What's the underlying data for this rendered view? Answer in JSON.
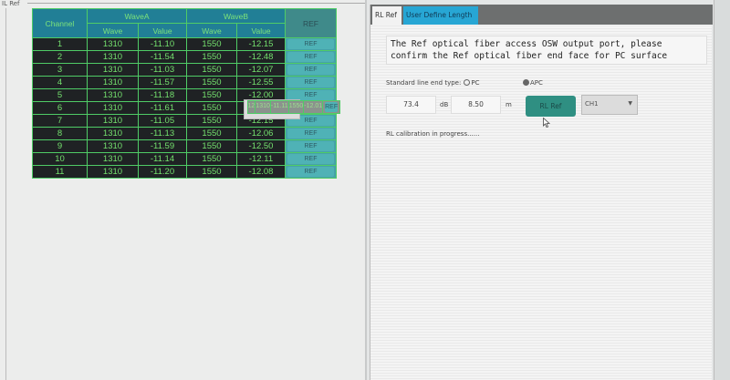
{
  "left_title": "IL Ref",
  "table": {
    "headers": {
      "channel": "Channel",
      "waveA": "WaveA",
      "waveB": "WaveB",
      "ref": "REF",
      "wave": "Wave",
      "value": "Value"
    },
    "rows": [
      {
        "ch": "1",
        "wa": "1310",
        "va": "-11.10",
        "wb": "1550",
        "vb": "-12.15",
        "ref": "REF"
      },
      {
        "ch": "2",
        "wa": "1310",
        "va": "-11.54",
        "wb": "1550",
        "vb": "-12.48",
        "ref": "REF"
      },
      {
        "ch": "3",
        "wa": "1310",
        "va": "-11.03",
        "wb": "1550",
        "vb": "-12.07",
        "ref": "REF"
      },
      {
        "ch": "4",
        "wa": "1310",
        "va": "-11.57",
        "wb": "1550",
        "vb": "-12.55",
        "ref": "REF"
      },
      {
        "ch": "5",
        "wa": "1310",
        "va": "-11.18",
        "wb": "1550",
        "vb": "-12.00",
        "ref": "REF"
      },
      {
        "ch": "6",
        "wa": "1310",
        "va": "-11.61",
        "wb": "1550",
        "vb": "-12.68",
        "ref": "REF"
      },
      {
        "ch": "7",
        "wa": "1310",
        "va": "-11.05",
        "wb": "1550",
        "vb": "-12.15",
        "ref": "REF"
      },
      {
        "ch": "8",
        "wa": "1310",
        "va": "-11.13",
        "wb": "1550",
        "vb": "-12.06",
        "ref": "REF"
      },
      {
        "ch": "9",
        "wa": "1310",
        "va": "-11.59",
        "wb": "1550",
        "vb": "-12.50",
        "ref": "REF"
      },
      {
        "ch": "10",
        "wa": "1310",
        "va": "-11.14",
        "wb": "1550",
        "vb": "-12.11",
        "ref": "REF"
      },
      {
        "ch": "11",
        "wa": "1310",
        "va": "-11.20",
        "wb": "1550",
        "vb": "-12.08",
        "ref": "REF"
      },
      {
        "ch": "12",
        "wa": "1310",
        "va": "-11.11",
        "wb": "1550",
        "vb": "-12.01",
        "ref": "REF"
      }
    ],
    "selected_row": "12"
  },
  "right": {
    "tabs": [
      "RL Ref",
      "User Define Length"
    ],
    "active_tab": "User Define Length",
    "message": "The Ref optical fiber access OSW output port, please confirm the Ref optical fiber end face for PC surface",
    "end_type_label": "Standard line end type:",
    "opt_pc": "PC",
    "opt_apc": "APC",
    "selected_type": "APC",
    "db_value": "73.4",
    "db_unit": "dB",
    "m_value": "8.50",
    "m_unit": "m",
    "rl_ref_button": "RL Ref",
    "channel_select": "CH1",
    "status": "RL calibration in progress......"
  }
}
